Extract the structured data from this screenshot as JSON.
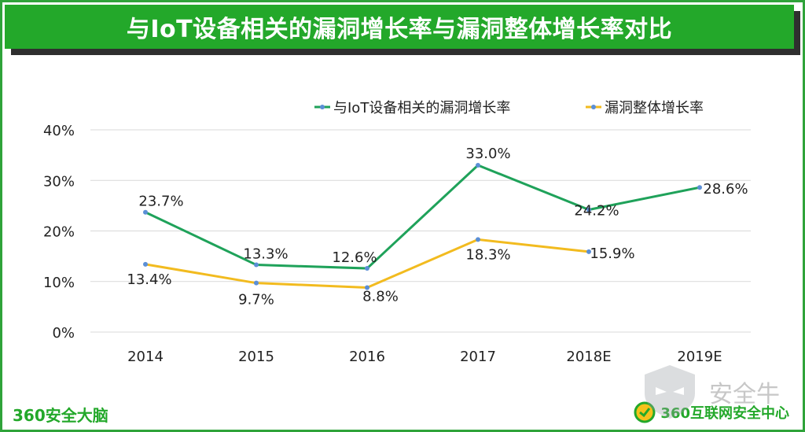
{
  "banner": {
    "title": "与IoT设备相关的漏洞增长率与漏洞整体增长率对比"
  },
  "chart_data": {
    "type": "line",
    "title": "",
    "xlabel": "",
    "ylabel": "",
    "categories": [
      "2014",
      "2015",
      "2016",
      "2017",
      "2018E",
      "2019E"
    ],
    "ylim": [
      0,
      40
    ],
    "yticks": [
      "0%",
      "10%",
      "20%",
      "30%",
      "40%"
    ],
    "ytick_values": [
      0,
      10,
      20,
      30,
      40
    ],
    "grid": true,
    "legend_position": "top-right",
    "series": [
      {
        "name": "与IoT设备相关的漏洞增长率",
        "color": "#1fa25a",
        "values": [
          23.7,
          13.3,
          12.6,
          33.0,
          24.2,
          28.6
        ],
        "labels": [
          "23.7%",
          "13.3%",
          "12.6%",
          "33.0%",
          "24.2%",
          "28.6%"
        ]
      },
      {
        "name": "漏洞整体增长率",
        "color": "#f2bb1f",
        "values": [
          13.4,
          9.7,
          8.8,
          18.3,
          15.9,
          null
        ],
        "labels": [
          "13.4%",
          "9.7%",
          "8.8%",
          "18.3%",
          "15.9%",
          null
        ]
      }
    ]
  },
  "footer": {
    "left_brand": "360安全大脑",
    "right_brand": "360互联网安全中心",
    "watermark": "安全牛"
  },
  "colors": {
    "accent": "#23a82a",
    "marker": "#5b8fd6"
  }
}
